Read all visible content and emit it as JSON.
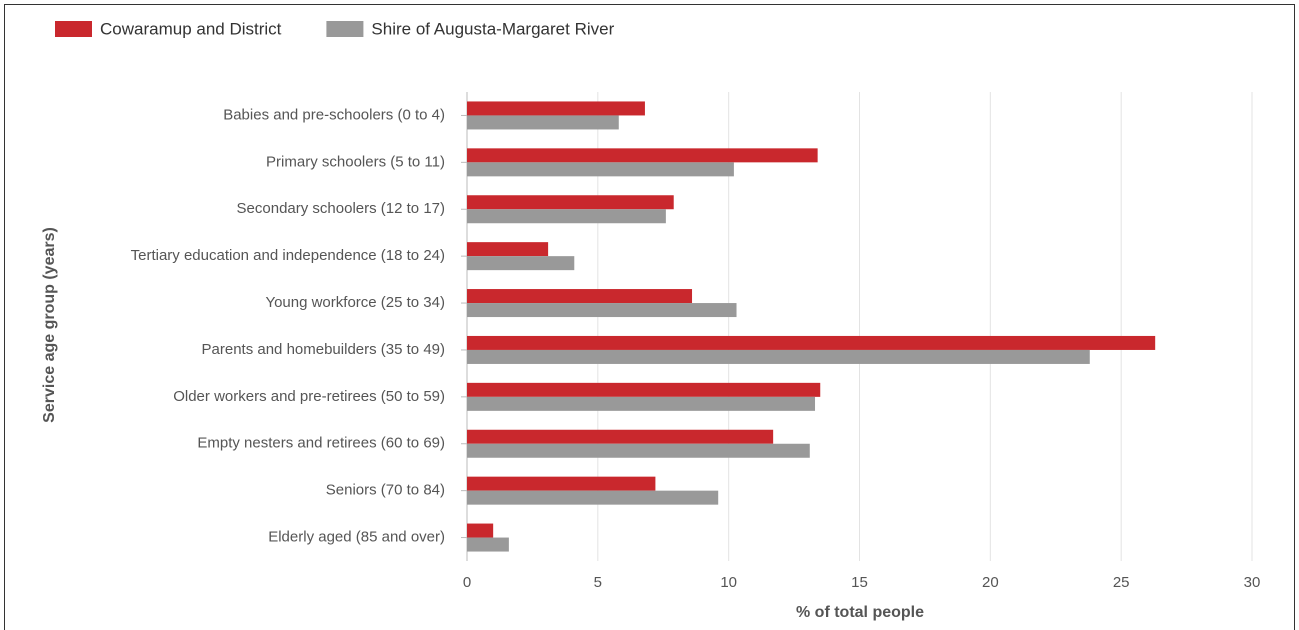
{
  "chart_data": {
    "type": "hbar",
    "categories": [
      "Babies and pre-schoolers (0 to 4)",
      "Primary schoolers (5 to 11)",
      "Secondary schoolers (12 to 17)",
      "Tertiary education and independence (18 to 24)",
      "Young workforce (25 to 34)",
      "Parents and homebuilders (35 to 49)",
      "Older workers and pre-retirees (50 to 59)",
      "Empty nesters and retirees (60 to 69)",
      "Seniors (70 to 84)",
      "Elderly aged (85 and over)"
    ],
    "series": [
      {
        "name": "Cowaramup and District",
        "color": "#c9282d",
        "values": [
          6.8,
          13.4,
          7.9,
          3.1,
          8.6,
          26.3,
          13.5,
          11.7,
          7.2,
          1.0
        ]
      },
      {
        "name": "Shire of Augusta-Margaret River",
        "color": "#999999",
        "values": [
          5.8,
          10.2,
          7.6,
          4.1,
          10.3,
          23.8,
          13.3,
          13.1,
          9.6,
          1.6
        ]
      }
    ],
    "xlabel": "% of total people",
    "ylabel": "Service age group (years)",
    "xlim": [
      0,
      30
    ],
    "xticks": [
      0,
      5,
      10,
      15,
      20,
      25,
      30
    ],
    "grid": true
  }
}
